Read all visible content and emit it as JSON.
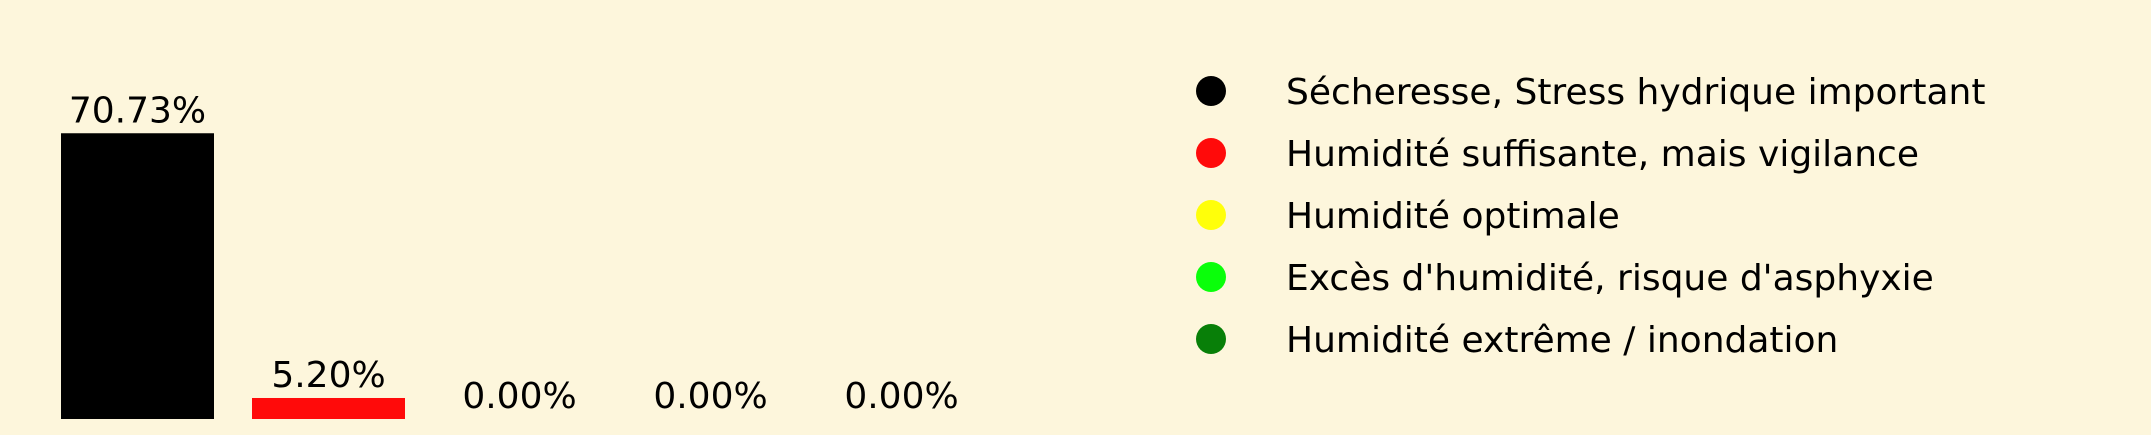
{
  "chart_data": {
    "type": "bar",
    "categories": [
      "Sécheresse, Stress hydrique important",
      "Humidité suffisante, mais vigilance",
      "Humidité optimale",
      "Excès d'humidité, risque d'asphyxie",
      "Humidité extrême / inondation"
    ],
    "values": [
      70.73,
      5.2,
      0.0,
      0.0,
      0.0
    ],
    "value_labels": [
      "70.73%",
      "5.20%",
      "0.00%",
      "0.00%",
      "0.00%"
    ],
    "colors": [
      "#000000",
      "#ff0a0a",
      "#ffff0a",
      "#0aff0a",
      "#087f08"
    ],
    "title": "",
    "xlabel": "",
    "ylabel": "",
    "ylim": [
      0,
      80
    ],
    "grid": false,
    "legend_position": "right",
    "background": "#fdf6dc"
  }
}
